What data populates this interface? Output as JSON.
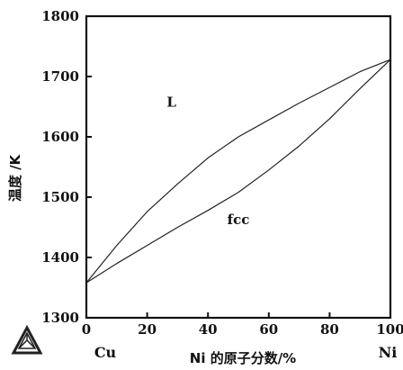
{
  "chart_data": {
    "type": "line",
    "title": "",
    "xlabel": "Ni 的原子分数/%",
    "ylabel": "温度 /K",
    "xlim": [
      0,
      100
    ],
    "ylim": [
      1300,
      1800
    ],
    "xticks": [
      0,
      20,
      40,
      60,
      80,
      100
    ],
    "yticks": [
      1300,
      1400,
      1500,
      1600,
      1700,
      1800
    ],
    "x_end_labels": {
      "left": "Cu",
      "right": "Ni"
    },
    "region_labels": [
      {
        "text": "L",
        "x": 28,
        "y": 1650
      },
      {
        "text": "fcc",
        "x": 50,
        "y": 1455
      }
    ],
    "series": [
      {
        "points": [
          [
            0,
            1358
          ],
          [
            10,
            1420
          ],
          [
            20,
            1476
          ],
          [
            30,
            1522
          ],
          [
            40,
            1565
          ],
          [
            50,
            1600
          ],
          [
            60,
            1628
          ],
          [
            70,
            1656
          ],
          [
            80,
            1682
          ],
          [
            90,
            1708
          ],
          [
            100,
            1728
          ]
        ]
      },
      {
        "points": [
          [
            0,
            1358
          ],
          [
            10,
            1390
          ],
          [
            20,
            1420
          ],
          [
            30,
            1450
          ],
          [
            40,
            1478
          ],
          [
            50,
            1508
          ],
          [
            60,
            1545
          ],
          [
            70,
            1585
          ],
          [
            80,
            1630
          ],
          [
            90,
            1680
          ],
          [
            100,
            1728
          ]
        ]
      }
    ],
    "grid": false,
    "line_color": "#222222",
    "axis_color": "#111111"
  }
}
